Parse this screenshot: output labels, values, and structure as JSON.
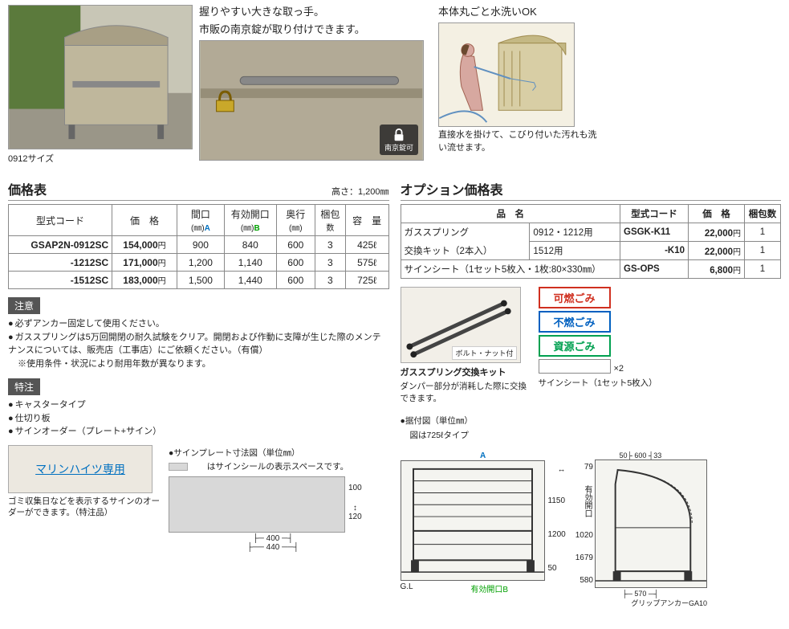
{
  "top": {
    "main_caption": "0912サイズ",
    "handle_text1": "握りやすい大きな取っ手。",
    "handle_text2": "市販の南京錠が取り付けできます。",
    "lock_badge": "南京錠可",
    "wash_title": "本体丸ごと水洗いOK",
    "wash_desc": "直接水を掛けて、こびり付いた汚れも洗い流せます。"
  },
  "price_table": {
    "title": "価格表",
    "height_note": "高さ：1,200㎜",
    "headers": {
      "code": "型式コード",
      "price": "価　格",
      "maguchi": "間口",
      "maguchi_unit": "(㎜)",
      "maguchi_sub": "A",
      "yuko": "有効開口",
      "yuko_unit": "(㎜)",
      "yuko_sub": "B",
      "okuyuki": "奥行",
      "okuyuki_unit": "(㎜)",
      "konpo": "梱包",
      "konpo_unit": "数",
      "yoryo": "容　量"
    },
    "rows": [
      {
        "code": "GSAP2N-0912SC",
        "price": "154,000",
        "maguchi": "900",
        "yuko": "840",
        "okuyuki": "600",
        "konpo": "3",
        "yoryo": "425ℓ"
      },
      {
        "code": "-1212SC",
        "price": "171,000",
        "maguchi": "1,200",
        "yuko": "1,140",
        "okuyuki": "600",
        "konpo": "3",
        "yoryo": "575ℓ"
      },
      {
        "code": "-1512SC",
        "price": "183,000",
        "maguchi": "1,500",
        "yuko": "1,440",
        "okuyuki": "600",
        "konpo": "3",
        "yoryo": "725ℓ"
      }
    ]
  },
  "caution": {
    "tag": "注意",
    "items": [
      "必ずアンカー固定して使用ください。",
      "ガススプリングは5万回開閉の耐久試験をクリア。開閉および作動に支障が生じた際のメンテナンスについては、販売店（工事店）にご依頼ください。（有償）"
    ],
    "sub": "※使用条件・状況により耐用年数が異なります。"
  },
  "tokuchu": {
    "tag": "特注",
    "items": [
      "キャスタータイプ",
      "仕切り板",
      "サインオーダー（プレート+サイン）"
    ]
  },
  "sign": {
    "plate_title": "●サインプレート寸法図（単位㎜）",
    "plate_note": "　　はサインシールの表示スペースです。",
    "sample_text": "マリンハイツ専用",
    "sample_note": "ゴミ収集日などを表示するサインのオーダーができます。（特注品）",
    "dim_w_outer": "440",
    "dim_w_inner": "400",
    "dim_h_outer": "120",
    "dim_h_inner": "100"
  },
  "option_table": {
    "title": "オプション価格表",
    "headers": {
      "name": "品　名",
      "code": "型式コード",
      "price": "価　格",
      "konpo": "梱包数"
    },
    "rows": [
      {
        "name1": "ガススプリング",
        "name2": "0912・1212用",
        "code": "GSGK-K11",
        "price": "22,000",
        "konpo": "1"
      },
      {
        "name1": "交換キット（2本入）",
        "name2": "1512用",
        "code": "-K10",
        "price": "22,000",
        "konpo": "1"
      },
      {
        "name1_full": "サインシート（1セット5枚入・1枚:80×330㎜）",
        "code": "GS-OPS",
        "price": "6,800",
        "konpo": "1"
      }
    ]
  },
  "opt_imgs": {
    "bolt_label": "ボルト・ナット付",
    "gas_title": "ガススプリング交換キット",
    "gas_desc": "ダンパー部分が消耗した際に交換できます。",
    "gomi_red": "可燃ごみ",
    "gomi_blue": "不燃ごみ",
    "gomi_green": "資源ごみ",
    "x2": "×2",
    "sign_sheet_label": "サインシート（1セット5枚入）"
  },
  "diagram": {
    "title": "●据付図（単位㎜）",
    "sub": "図は725ℓタイプ",
    "label_a": "A",
    "label_b": "有効開口B",
    "gl": "G.L",
    "h_total": "1200",
    "h_inner": "1150",
    "h_base": "50",
    "side_top": "79",
    "side_mid": "1020",
    "side_mid_label": "有効開口",
    "side_total": "1679",
    "side_lower": "580",
    "side_w_top_a": "50",
    "side_w_top_b": "600",
    "side_w_top_c": "33",
    "side_w_bottom": "570",
    "side_w_label_a": "→",
    "side_w_label_b": "←",
    "anchor": "グリップアンカーGA10"
  },
  "yen_unit": "円"
}
